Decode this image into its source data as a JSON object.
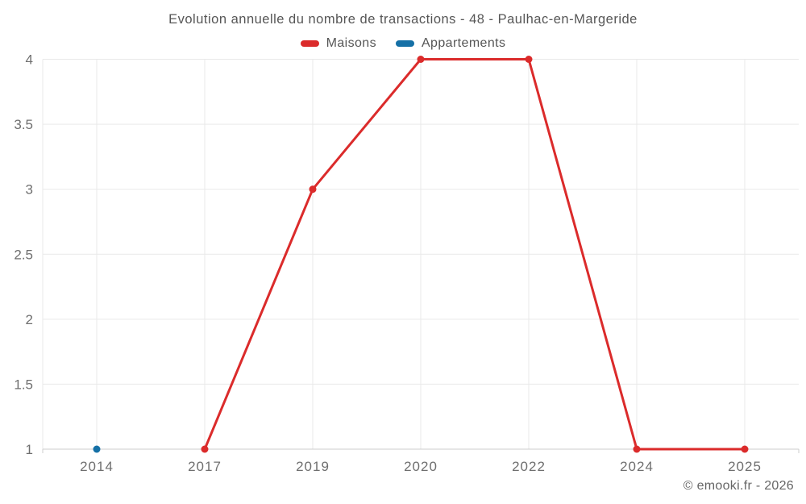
{
  "title": "Evolution annuelle du nombre de transactions - 48 - Paulhac-en-Margeride",
  "copyright": "© emooki.fr - 2026",
  "chart_data": {
    "type": "line",
    "title": "Evolution annuelle du nombre de transactions - 48 - Paulhac-en-Margeride",
    "categories": [
      "2014",
      "2017",
      "2019",
      "2020",
      "2022",
      "2024",
      "2025"
    ],
    "series": [
      {
        "name": "Maisons",
        "color": "#db2b2b",
        "values": [
          null,
          1,
          3,
          4,
          4,
          1,
          1
        ]
      },
      {
        "name": "Appartements",
        "color": "#1570a6",
        "values": [
          1,
          null,
          null,
          null,
          null,
          null,
          null
        ]
      }
    ],
    "xlabel": "",
    "ylabel": "",
    "ylim": [
      1,
      4
    ],
    "yticks": [
      1,
      1.5,
      2,
      2.5,
      3,
      3.5,
      4
    ],
    "ytick_labels": [
      "1",
      "1.5",
      "2",
      "2.5",
      "3",
      "3.5",
      "4"
    ],
    "grid": true,
    "legend_position": "top",
    "colors": {
      "grid": "#e9e9e9",
      "axis": "#cccccc",
      "tick_label": "#6f6f6f"
    }
  }
}
